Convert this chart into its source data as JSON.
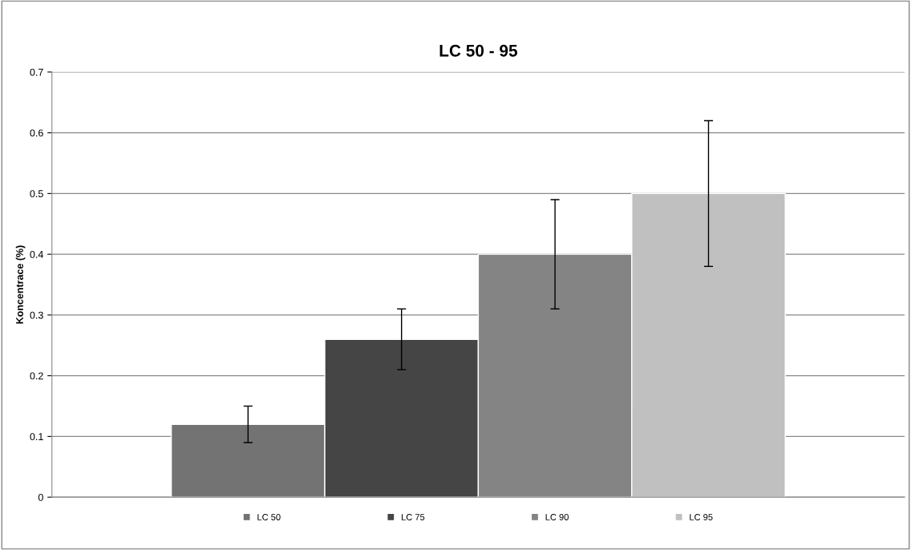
{
  "chart_data": {
    "type": "bar",
    "title": "LC 50 - 95",
    "ylabel": "Koncentrace (%)",
    "categories": [
      null
    ],
    "series": [
      {
        "name": "LC 50",
        "color": "#737373",
        "values": [
          0.12
        ],
        "errors": [
          0.03
        ]
      },
      {
        "name": "LC 75",
        "color": "#454545",
        "values": [
          0.26
        ],
        "errors": [
          0.05
        ]
      },
      {
        "name": "LC 90",
        "color": "#848484",
        "values": [
          0.4
        ],
        "errors": [
          0.09
        ]
      },
      {
        "name": "LC 95",
        "color": "#c0c0c0",
        "values": [
          0.5
        ],
        "errors": [
          0.12
        ]
      }
    ],
    "ylim": [
      0,
      0.7
    ],
    "yticks": [
      0,
      0.1,
      0.2,
      0.3,
      0.4,
      0.5,
      0.6,
      0.7
    ],
    "grid": "y",
    "legend": "bottom"
  }
}
